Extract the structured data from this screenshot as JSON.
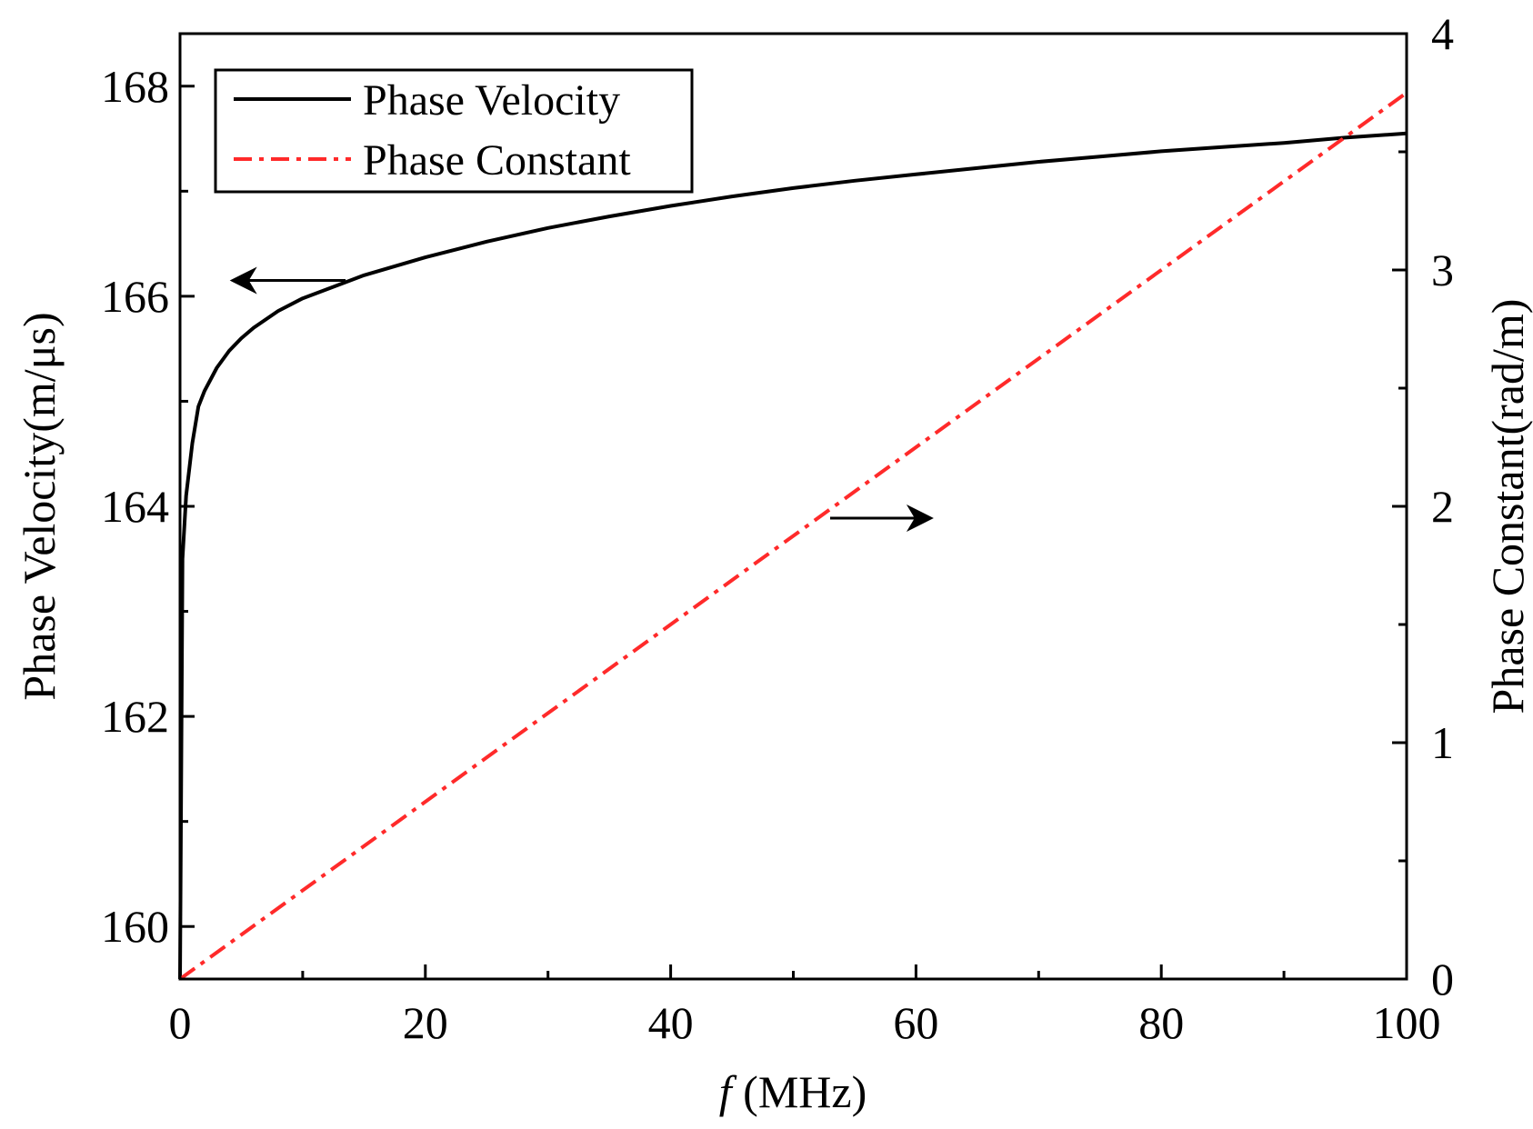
{
  "chart_data": {
    "type": "line",
    "title": "",
    "xlabel_italic": "f",
    "xlabel_unit": " (MHz)",
    "ylabel": "Phase Velocity(m/μs)",
    "y2label": "Phase Constant(rad/m)",
    "xlim": [
      0,
      100
    ],
    "ylim": [
      159.5,
      168.5
    ],
    "y2lim": [
      0,
      4
    ],
    "xticks": [
      0,
      20,
      40,
      60,
      80,
      100
    ],
    "xticks_minor": [
      10,
      30,
      50,
      70,
      90
    ],
    "yticks": [
      160,
      162,
      164,
      166,
      168
    ],
    "yticks_minor": [
      161,
      163,
      165,
      167
    ],
    "y2ticks": [
      0,
      1,
      2,
      3,
      4
    ],
    "y2ticks_minor": [
      0.5,
      1.5,
      2.5,
      3.5
    ],
    "grid": false,
    "legend_position": "top-left",
    "series": [
      {
        "name": "Phase Velocity",
        "axis": "left",
        "color": "#000000",
        "style": "solid",
        "x": [
          0,
          0.2,
          0.5,
          1,
          1.5,
          2,
          3,
          4,
          5,
          6,
          8,
          10,
          15,
          20,
          25,
          30,
          35,
          40,
          45,
          50,
          55,
          60,
          65,
          70,
          75,
          80,
          85,
          90,
          95,
          100
        ],
        "y": [
          159.5,
          163.5,
          164.1,
          164.6,
          164.95,
          165.1,
          165.32,
          165.48,
          165.6,
          165.7,
          165.86,
          165.98,
          166.2,
          166.37,
          166.52,
          166.65,
          166.76,
          166.86,
          166.95,
          167.03,
          167.1,
          167.16,
          167.22,
          167.28,
          167.33,
          167.38,
          167.42,
          167.46,
          167.51,
          167.55
        ]
      },
      {
        "name": "Phase Constant",
        "axis": "right",
        "color": "#ff2a2a",
        "style": "dash-dot",
        "x": [
          0,
          100
        ],
        "y": [
          0,
          3.75
        ]
      }
    ],
    "annotations": [
      {
        "type": "arrow",
        "direction": "left",
        "points_to": "left axis",
        "x_from": 13.5,
        "x_to": 4.5,
        "y": 166.15,
        "axis": "left"
      },
      {
        "type": "arrow",
        "direction": "right",
        "points_to": "right axis",
        "x_from": 53,
        "x_to": 61,
        "y2": 1.95,
        "axis": "right"
      }
    ]
  }
}
